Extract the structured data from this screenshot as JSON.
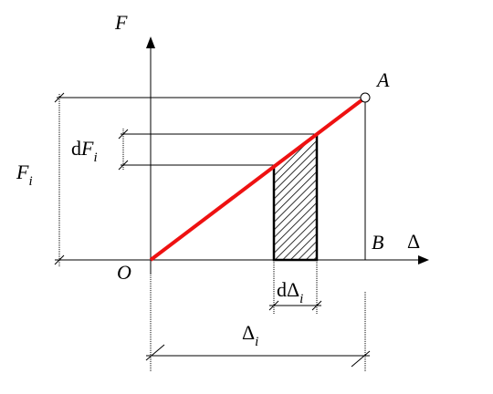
{
  "labels": {
    "force_axis": {
      "main": "F"
    },
    "displacement_axis": {
      "main": "Δ"
    },
    "origin": {
      "main": "O"
    },
    "point_a": {
      "main": "A"
    },
    "point_b": {
      "main": "B"
    },
    "force_i": {
      "main": "F",
      "sub": "i"
    },
    "d_force_i": {
      "prefix": "d",
      "main": "F",
      "sub": "i"
    },
    "d_delta_i": {
      "prefix": "d",
      "main": "Δ",
      "sub": "i"
    },
    "delta_i": {
      "main": "Δ",
      "sub": "i"
    }
  }
}
